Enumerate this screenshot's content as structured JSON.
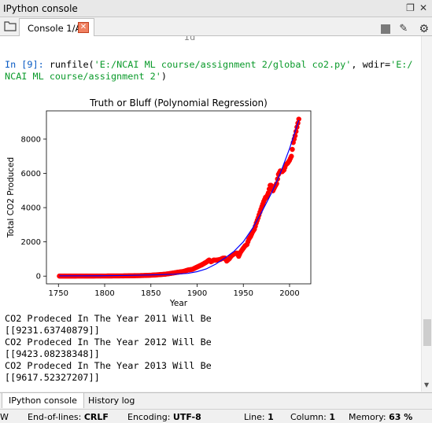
{
  "window": {
    "title": "IPython console"
  },
  "tabs": {
    "console_tab": "Console 1/A"
  },
  "console": {
    "partial_line": "Id",
    "input_prompt": "In [9]: ",
    "input_line1_a": "runfile(",
    "input_line1_b": "'E:/NCAI ML course/assignment 2/global co2.py'",
    "input_line1_c": ", wdir=",
    "input_line1_d": "'E:/",
    "input_line2_a": "NCAI ML course/assignment 2'",
    "input_line2_b": ")",
    "output": [
      "CO2 Prodeced In The Year 2011 Will Be",
      "[[9231.63740879]]",
      "CO2 Prodeced In The Year 2012 Will Be",
      "[[9423.08238348]]",
      "CO2 Prodeced In The Year 2013 Will Be",
      "[[9617.52327207]]"
    ]
  },
  "chart_data": {
    "type": "scatter",
    "title": "Truth or Bluff (Polynomial Regression)",
    "xlabel": "Year",
    "ylabel": "Total CO2 Produced",
    "xlim": [
      1737,
      2023
    ],
    "ylim": [
      -450,
      9650
    ],
    "xticks": [
      1750,
      1800,
      1850,
      1900,
      1950,
      2000
    ],
    "yticks": [
      0,
      2000,
      4000,
      6000,
      8000
    ],
    "series": [
      {
        "kind": "points",
        "color": "#ff0000",
        "points": [
          [
            1751,
            3
          ],
          [
            1760,
            3
          ],
          [
            1770,
            4
          ],
          [
            1780,
            5
          ],
          [
            1790,
            7
          ],
          [
            1800,
            8
          ],
          [
            1810,
            10
          ],
          [
            1820,
            14
          ],
          [
            1830,
            24
          ],
          [
            1840,
            33
          ],
          [
            1850,
            54
          ],
          [
            1855,
            70
          ],
          [
            1860,
            91
          ],
          [
            1865,
            110
          ],
          [
            1870,
            147
          ],
          [
            1875,
            190
          ],
          [
            1880,
            236
          ],
          [
            1885,
            270
          ],
          [
            1890,
            356
          ],
          [
            1895,
            400
          ],
          [
            1900,
            534
          ],
          [
            1905,
            660
          ],
          [
            1910,
            819
          ],
          [
            1913,
            943
          ],
          [
            1915,
            840
          ],
          [
            1918,
            940
          ],
          [
            1920,
            932
          ],
          [
            1923,
            950
          ],
          [
            1925,
            975
          ],
          [
            1928,
            1050
          ],
          [
            1930,
            1053
          ],
          [
            1932,
            880
          ],
          [
            1935,
            1025
          ],
          [
            1937,
            1180
          ],
          [
            1940,
            1299
          ],
          [
            1943,
            1350
          ],
          [
            1945,
            1160
          ],
          [
            1947,
            1400
          ],
          [
            1950,
            1630
          ],
          [
            1952,
            1775
          ],
          [
            1954,
            1850
          ],
          [
            1956,
            2160
          ],
          [
            1958,
            2330
          ],
          [
            1960,
            2577
          ],
          [
            1962,
            2740
          ],
          [
            1964,
            3100
          ],
          [
            1966,
            3400
          ],
          [
            1968,
            3740
          ],
          [
            1970,
            4053
          ],
          [
            1972,
            4350
          ],
          [
            1974,
            4600
          ],
          [
            1975,
            4596
          ],
          [
            1977,
            4860
          ],
          [
            1979,
            5300
          ],
          [
            1980,
            5300
          ],
          [
            1982,
            4984
          ],
          [
            1984,
            5200
          ],
          [
            1986,
            5400
          ],
          [
            1988,
            5940
          ],
          [
            1990,
            6144
          ],
          [
            1992,
            6100
          ],
          [
            1994,
            6200
          ],
          [
            1996,
            6500
          ],
          [
            1998,
            6600
          ],
          [
            2000,
            6765
          ],
          [
            2002,
            7000
          ],
          [
            2004,
            7800
          ],
          [
            2006,
            8200
          ],
          [
            2008,
            8700
          ],
          [
            2010,
            9167
          ]
        ]
      },
      {
        "kind": "line",
        "color": "#0000ff",
        "points": [
          [
            1751,
            20
          ],
          [
            1775,
            20
          ],
          [
            1800,
            25
          ],
          [
            1825,
            40
          ],
          [
            1850,
            70
          ],
          [
            1875,
            110
          ],
          [
            1890,
            160
          ],
          [
            1900,
            260
          ],
          [
            1910,
            420
          ],
          [
            1920,
            700
          ],
          [
            1930,
            1050
          ],
          [
            1940,
            1450
          ],
          [
            1950,
            2000
          ],
          [
            1960,
            2800
          ],
          [
            1970,
            3750
          ],
          [
            1980,
            4800
          ],
          [
            1990,
            6000
          ],
          [
            2000,
            7450
          ],
          [
            2010,
            9100
          ]
        ]
      }
    ]
  },
  "bottom_tabs": {
    "ipython": "IPython console",
    "history": "History log"
  },
  "status": {
    "left_fragment": "W",
    "eol_label": "End-of-lines:",
    "eol_value": "CRLF",
    "enc_label": "Encoding:",
    "enc_value": "UTF-8",
    "line_label": "Line:",
    "line_value": "1",
    "col_label": "Column:",
    "col_value": "1",
    "mem_label": "Memory:",
    "mem_value": "63 %"
  },
  "colors": {
    "prompt": "#0a5bc4",
    "string": "#0a9a2a",
    "scatter": "#ff0000",
    "fit_line": "#0000ff"
  }
}
